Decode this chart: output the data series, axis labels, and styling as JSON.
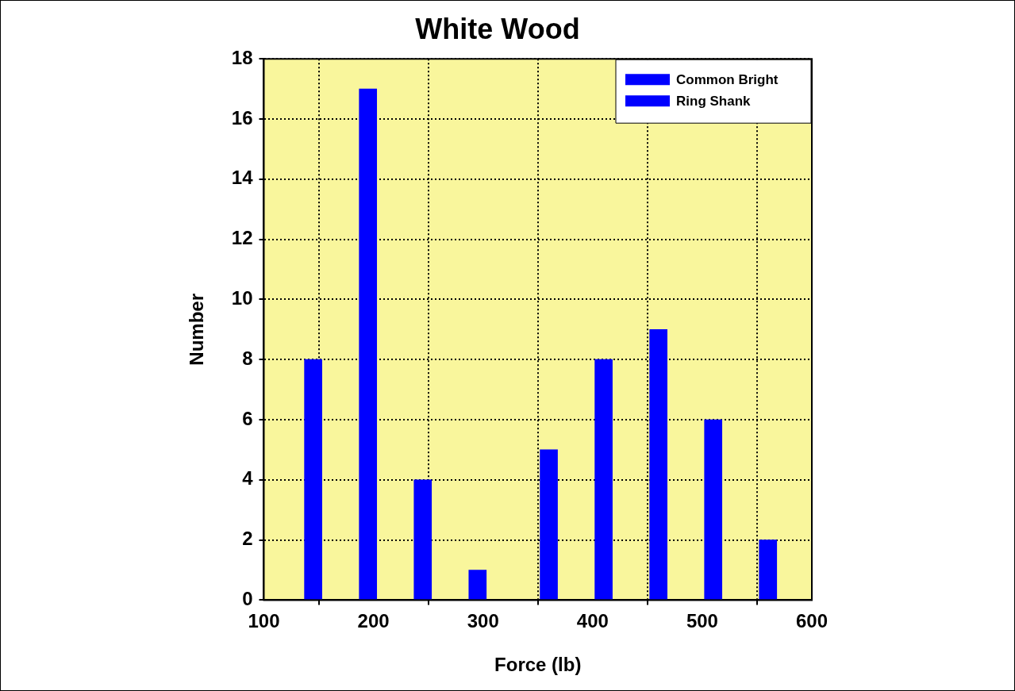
{
  "chart_data": {
    "type": "bar",
    "title": "White Wood",
    "xlabel": "Force (lb)",
    "ylabel": "Number",
    "series": [
      {
        "name": "Common Bright",
        "color": "#0000ff",
        "x": [
          145,
          195,
          245,
          295
        ],
        "values": [
          8,
          17,
          4,
          1
        ]
      },
      {
        "name": "Ring Shank",
        "color": "#0000ff",
        "x": [
          360,
          410,
          460,
          510,
          560
        ],
        "values": [
          5,
          8,
          9,
          6,
          2
        ]
      }
    ],
    "xlim": [
      100,
      600
    ],
    "xticks": [
      100,
      200,
      300,
      400,
      500,
      600
    ],
    "ylim": [
      0,
      18
    ],
    "yticks": [
      0,
      2,
      4,
      6,
      8,
      10,
      12,
      14,
      16,
      18
    ],
    "grid": true,
    "line_style": "dotted",
    "legend": "top right"
  }
}
